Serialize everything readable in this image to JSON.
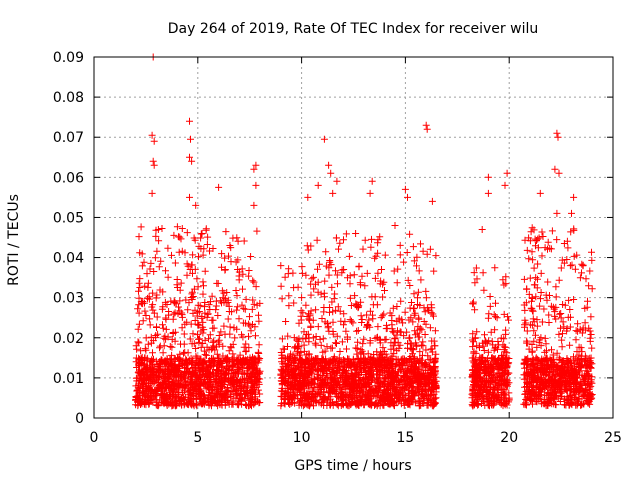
{
  "chart_data": {
    "type": "scatter",
    "title": "Day 264 of 2019, Rate Of TEC Index for receiver wilu",
    "xlabel": "GPS time / hours",
    "ylabel": "ROTI / TECUs",
    "xlim": [
      0,
      25
    ],
    "ylim": [
      0,
      0.09
    ],
    "x_ticks": [
      0,
      5,
      10,
      15,
      20,
      25
    ],
    "y_ticks": [
      0,
      0.01,
      0.02,
      0.03,
      0.04,
      0.05,
      0.06,
      0.07,
      0.08,
      0.09
    ],
    "x_tick_labels": [
      "0",
      "5",
      "10",
      "15",
      "20",
      "25"
    ],
    "y_tick_labels": [
      "0",
      "0.01",
      "0.02",
      "0.03",
      "0.04",
      "0.05",
      "0.06",
      "0.07",
      "0.08",
      "0.09"
    ],
    "grid": true,
    "marker": "+",
    "series": [
      {
        "name": "ROTI",
        "color": "#ff0000",
        "segments": [
          {
            "x_start": 2.0,
            "x_end": 8.0,
            "typical_max": 0.03
          },
          {
            "x_start": 9.0,
            "x_end": 10.2,
            "typical_max": 0.02
          },
          {
            "x_start": 10.2,
            "x_end": 16.5,
            "typical_max": 0.028
          },
          {
            "x_start": 18.2,
            "x_end": 20.0,
            "typical_max": 0.02
          },
          {
            "x_start": 20.7,
            "x_end": 24.0,
            "typical_max": 0.03
          }
        ],
        "outliers": [
          [
            2.85,
            0.09
          ],
          [
            2.8,
            0.0705
          ],
          [
            2.9,
            0.069
          ],
          [
            2.85,
            0.064
          ],
          [
            2.9,
            0.063
          ],
          [
            2.8,
            0.056
          ],
          [
            3.1,
            0.047
          ],
          [
            4.6,
            0.074
          ],
          [
            4.65,
            0.0695
          ],
          [
            4.6,
            0.065
          ],
          [
            4.7,
            0.064
          ],
          [
            4.6,
            0.055
          ],
          [
            4.9,
            0.053
          ],
          [
            6.0,
            0.0575
          ],
          [
            7.8,
            0.063
          ],
          [
            7.7,
            0.062
          ],
          [
            7.8,
            0.058
          ],
          [
            7.7,
            0.053
          ],
          [
            11.1,
            0.0695
          ],
          [
            11.3,
            0.063
          ],
          [
            11.4,
            0.061
          ],
          [
            11.7,
            0.059
          ],
          [
            11.5,
            0.056
          ],
          [
            13.4,
            0.059
          ],
          [
            13.3,
            0.056
          ],
          [
            15.0,
            0.057
          ],
          [
            15.1,
            0.055
          ],
          [
            16.0,
            0.073
          ],
          [
            16.05,
            0.072
          ],
          [
            16.3,
            0.054
          ],
          [
            10.3,
            0.055
          ],
          [
            10.8,
            0.058
          ],
          [
            19.0,
            0.06
          ],
          [
            19.9,
            0.061
          ],
          [
            19.8,
            0.058
          ],
          [
            19.0,
            0.056
          ],
          [
            22.3,
            0.071
          ],
          [
            22.35,
            0.07
          ],
          [
            22.2,
            0.062
          ],
          [
            22.4,
            0.061
          ],
          [
            22.3,
            0.051
          ],
          [
            21.5,
            0.056
          ],
          [
            23.1,
            0.055
          ],
          [
            23.0,
            0.051
          ],
          [
            18.7,
            0.047
          ],
          [
            14.5,
            0.048
          ],
          [
            12.6,
            0.046
          ],
          [
            9.0,
            0.038
          ],
          [
            6.6,
            0.039
          ],
          [
            5.2,
            0.046
          ]
        ]
      }
    ]
  }
}
